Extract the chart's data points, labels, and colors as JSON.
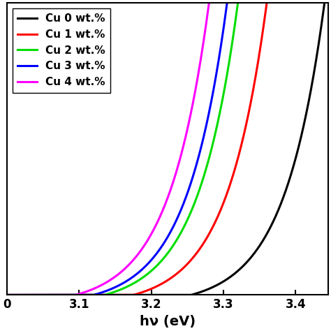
{
  "series": [
    {
      "label": "Cu 0 wt.%",
      "color": "#000000",
      "onset": 3.255,
      "steepness": 18
    },
    {
      "label": "Cu 1 wt.%",
      "color": "#ff0000",
      "onset": 3.175,
      "steepness": 18
    },
    {
      "label": "Cu 2 wt.%",
      "color": "#00dd00",
      "onset": 3.135,
      "steepness": 18
    },
    {
      "label": "Cu 3 wt.%",
      "color": "#0000ff",
      "onset": 3.12,
      "steepness": 18
    },
    {
      "label": "Cu 4 wt.%",
      "color": "#ff00ff",
      "onset": 3.095,
      "steepness": 18
    }
  ],
  "xlim": [
    3.0,
    3.445
  ],
  "ylim": [
    0,
    1.0
  ],
  "xlabel": "hν (eV)",
  "xticks": [
    3.0,
    3.1,
    3.2,
    3.3,
    3.4
  ],
  "xticklabels": [
    "0",
    "3.1",
    "3.2",
    "3.3",
    "3.4"
  ],
  "linewidth": 2.2,
  "legend_fontsize": 11,
  "xlabel_fontsize": 14,
  "background_color": "#ffffff"
}
